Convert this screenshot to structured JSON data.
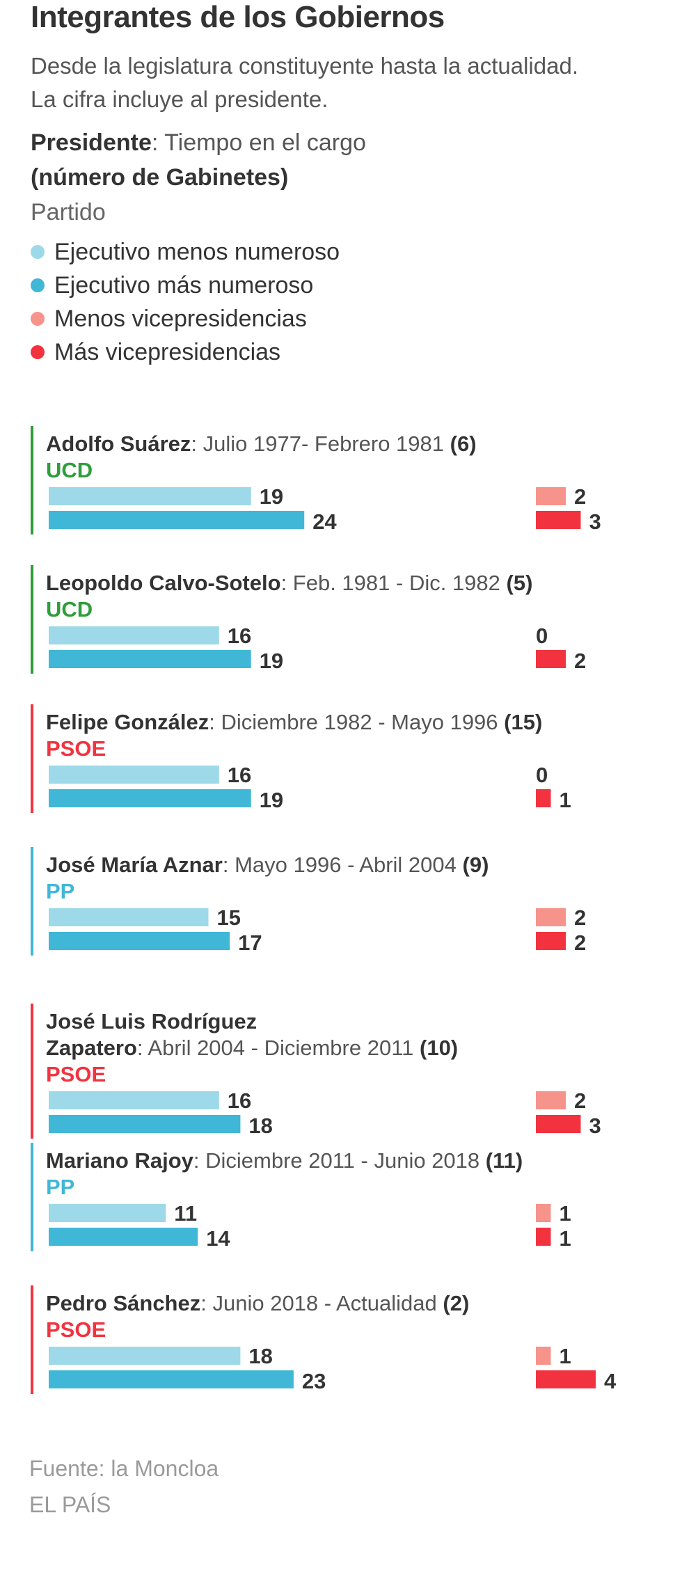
{
  "title": "Integrantes de los Gobiernos",
  "subtitle_line1": "Desde la legislatura constituyente hasta la actualidad.",
  "subtitle_line2": "La cifra incluye al presidente.",
  "key": {
    "president": "Presidente",
    "term": ": Tiempo en el cargo",
    "cabinets": "(número de Gabinetes)",
    "party": "Partido"
  },
  "legend": [
    {
      "label": "Ejecutivo menos numeroso",
      "color": "#9dd9e8"
    },
    {
      "label": "Ejecutivo más numeroso",
      "color": "#40b7d6"
    },
    {
      "label": "Menos vicepresidencias",
      "color": "#f6938a"
    },
    {
      "label": "Más vicepresidencias",
      "color": "#f2333f"
    }
  ],
  "party_colors": {
    "UCD": "#2e9d3a",
    "PSOE": "#f2333f",
    "PP": "#40b7d6"
  },
  "chart_data": {
    "type": "bar",
    "orientation": "horizontal",
    "series_names": [
      "Ejecutivo menos numeroso",
      "Ejecutivo más numeroso",
      "Menos vicepresidencias",
      "Más vicepresidencias"
    ],
    "presidents": [
      {
        "name": "Adolfo Suárez",
        "term": ": Julio 1977- Febrero 1981 ",
        "cabinets": "(6)",
        "party": "UCD",
        "min_exec": 19,
        "max_exec": 24,
        "min_vp": 2,
        "max_vp": 3
      },
      {
        "name": "Leopoldo Calvo-Sotelo",
        "term": ": Feb. 1981 - Dic. 1982 ",
        "cabinets": "(5)",
        "party": "UCD",
        "min_exec": 16,
        "max_exec": 19,
        "min_vp": 0,
        "max_vp": 2
      },
      {
        "name": "Felipe González",
        "term": ":  Diciembre 1982 - Mayo 1996 ",
        "cabinets": "(15)",
        "party": "PSOE",
        "min_exec": 16,
        "max_exec": 19,
        "min_vp": 0,
        "max_vp": 1
      },
      {
        "name": "José María Aznar",
        "term": ":  Mayo 1996 - Abril 2004 ",
        "cabinets": "(9)",
        "party": "PP",
        "min_exec": 15,
        "max_exec": 17,
        "min_vp": 2,
        "max_vp": 2
      },
      {
        "name": "José Luis Rodríguez Zapatero",
        "term": ": Abril 2004 - Diciembre 2011 ",
        "cabinets": "(10)",
        "party": "PSOE",
        "min_exec": 16,
        "max_exec": 18,
        "min_vp": 2,
        "max_vp": 3
      },
      {
        "name": "Mariano Rajoy",
        "term": ":  Diciembre 2011 - Junio 2018 ",
        "cabinets": "(11)",
        "party": "PP",
        "min_exec": 11,
        "max_exec": 14,
        "min_vp": 1,
        "max_vp": 1
      },
      {
        "name": "Pedro Sánchez",
        "term": ": Junio 2018 - Actualidad ",
        "cabinets": "(2)",
        "party": "PSOE",
        "min_exec": 18,
        "max_exec": 23,
        "min_vp": 1,
        "max_vp": 4
      }
    ]
  },
  "source": "Fuente: la Moncloa",
  "credit": "EL PAÍS"
}
